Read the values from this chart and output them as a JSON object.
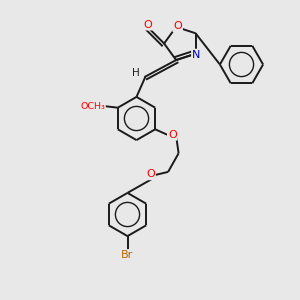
{
  "background_color": "#e8e8e8",
  "bond_color": "#1a1a1a",
  "atom_colors": {
    "O": "#ff0000",
    "N": "#0000bb",
    "Br": "#bb6600",
    "H": "#1a1a1a",
    "C": "#1a1a1a"
  },
  "figsize": [
    3.0,
    3.0
  ],
  "dpi": 100
}
